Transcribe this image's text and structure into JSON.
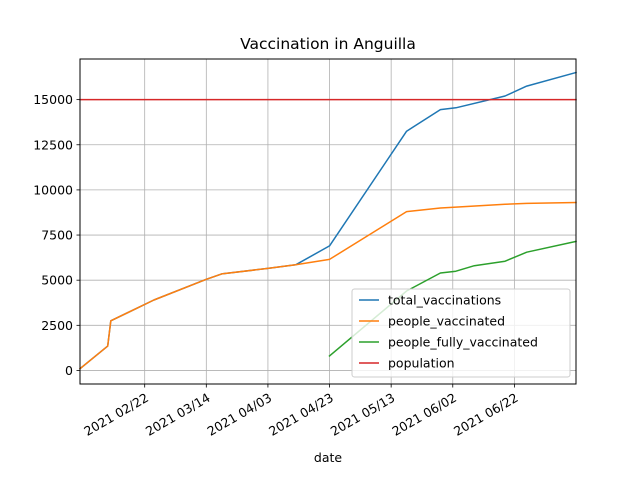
{
  "chart_data": {
    "type": "line",
    "title": "Vaccination in Anguilla",
    "xlabel": "date",
    "ylabel": "",
    "x_range": [
      "2021-02-01",
      "2021-07-12"
    ],
    "ylim": [
      -750,
      17250
    ],
    "x_ticks": [
      "2021-02-22",
      "2021-03-14",
      "2021-04-03",
      "2021-04-23",
      "2021-05-13",
      "2021-06-02",
      "2021-06-22"
    ],
    "x_tick_labels": [
      "2021 02/22",
      "2021 03/14",
      "2021 04/03",
      "2021 04/23",
      "2021 05/13",
      "2021 06/02",
      "2021 06/22"
    ],
    "y_ticks": [
      0,
      2500,
      5000,
      7500,
      10000,
      12500,
      15000
    ],
    "y_tick_labels": [
      "0",
      "2500",
      "5000",
      "7500",
      "10000",
      "12500",
      "15000"
    ],
    "grid": true,
    "legend_position": "bottom-right",
    "series": [
      {
        "name": "total_vaccinations",
        "color": "#1f77b4",
        "points": [
          [
            "2021-02-01",
            100
          ],
          [
            "2021-02-10",
            1350
          ],
          [
            "2021-02-11",
            2750
          ],
          [
            "2021-02-25",
            3900
          ],
          [
            "2021-03-14",
            5050
          ],
          [
            "2021-03-19",
            5350
          ],
          [
            "2021-04-03",
            5650
          ],
          [
            "2021-04-12",
            5850
          ],
          [
            "2021-04-23",
            6900
          ],
          [
            "2021-05-18",
            13250
          ],
          [
            "2021-05-29",
            14450
          ],
          [
            "2021-06-03",
            14550
          ],
          [
            "2021-06-19",
            15200
          ],
          [
            "2021-06-26",
            15750
          ],
          [
            "2021-07-12",
            16500
          ]
        ]
      },
      {
        "name": "people_vaccinated",
        "color": "#ff7f0e",
        "points": [
          [
            "2021-02-01",
            100
          ],
          [
            "2021-02-10",
            1350
          ],
          [
            "2021-02-11",
            2750
          ],
          [
            "2021-02-25",
            3900
          ],
          [
            "2021-03-14",
            5050
          ],
          [
            "2021-03-19",
            5350
          ],
          [
            "2021-04-03",
            5650
          ],
          [
            "2021-04-12",
            5850
          ],
          [
            "2021-04-23",
            6150
          ],
          [
            "2021-05-18",
            8800
          ],
          [
            "2021-05-29",
            9000
          ],
          [
            "2021-06-03",
            9050
          ],
          [
            "2021-06-19",
            9200
          ],
          [
            "2021-06-26",
            9250
          ],
          [
            "2021-07-12",
            9300
          ]
        ]
      },
      {
        "name": "people_fully_vaccinated",
        "color": "#2ca02c",
        "points": [
          [
            "2021-04-23",
            800
          ],
          [
            "2021-05-18",
            4400
          ],
          [
            "2021-05-29",
            5400
          ],
          [
            "2021-06-03",
            5500
          ],
          [
            "2021-06-09",
            5800
          ],
          [
            "2021-06-19",
            6050
          ],
          [
            "2021-06-26",
            6550
          ],
          [
            "2021-07-12",
            7150
          ]
        ]
      },
      {
        "name": "population",
        "color": "#d62728",
        "points": [
          [
            "2021-02-01",
            15000
          ],
          [
            "2021-07-12",
            15000
          ]
        ]
      }
    ]
  }
}
